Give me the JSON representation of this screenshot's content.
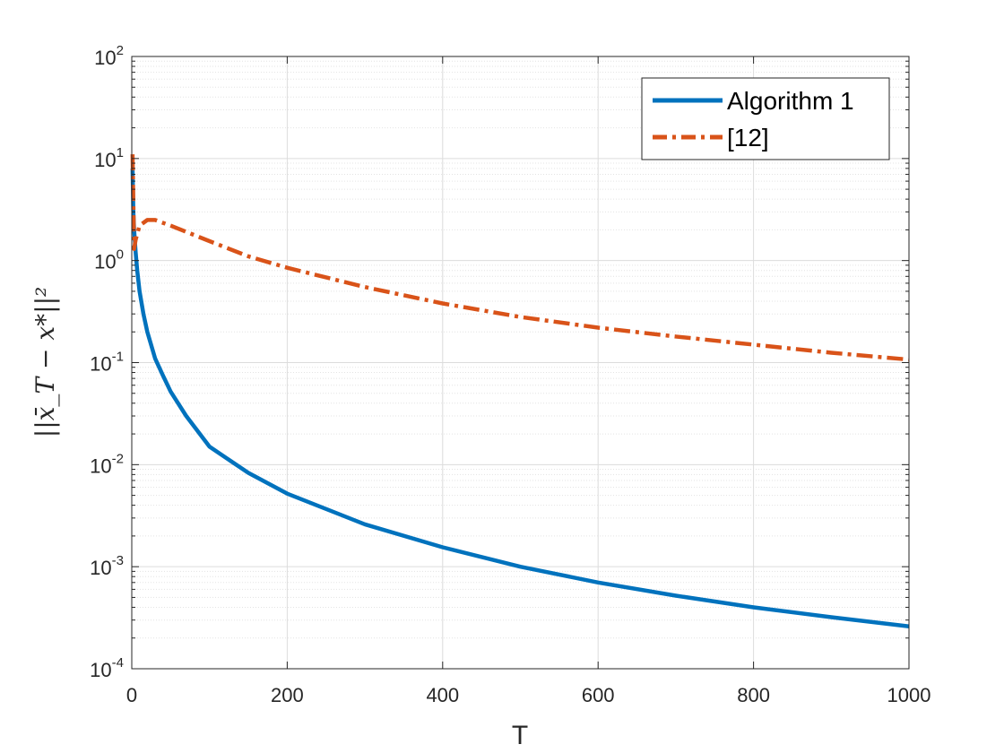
{
  "chart_data": {
    "type": "line",
    "title": "",
    "xlabel": "T",
    "ylabel": "||x̄_T − x*||²",
    "xlim": [
      0,
      1000
    ],
    "ylim": [
      0.0001,
      100
    ],
    "yscale": "log",
    "grid": true,
    "legend_position": "top-right",
    "x_ticks": [
      "0",
      "200",
      "400",
      "600",
      "800",
      "1000"
    ],
    "y_ticks": [
      {
        "base": "10",
        "exp": "-4"
      },
      {
        "base": "10",
        "exp": "-3"
      },
      {
        "base": "10",
        "exp": "-2"
      },
      {
        "base": "10",
        "exp": "-1"
      },
      {
        "base": "10",
        "exp": "0"
      },
      {
        "base": "10",
        "exp": "1"
      },
      {
        "base": "10",
        "exp": "2"
      }
    ],
    "series": [
      {
        "name": "Algorithm 1",
        "color": "#0072BD",
        "style": "solid",
        "x": [
          1,
          2,
          3,
          5,
          7,
          10,
          15,
          20,
          30,
          40,
          50,
          70,
          100,
          150,
          200,
          300,
          400,
          500,
          600,
          700,
          800,
          900,
          1000
        ],
        "y": [
          8,
          3,
          2,
          1.2,
          0.8,
          0.5,
          0.3,
          0.2,
          0.11,
          0.075,
          0.052,
          0.03,
          0.015,
          0.0083,
          0.0052,
          0.0026,
          0.00155,
          0.001,
          0.0007,
          0.00052,
          0.0004,
          0.00032,
          0.00026
        ]
      },
      {
        "name": "[12]",
        "color": "#D95319",
        "style": "dash-dot",
        "x": [
          1,
          3,
          5,
          10,
          20,
          30,
          50,
          100,
          150,
          200,
          300,
          400,
          500,
          600,
          700,
          800,
          900,
          1000
        ],
        "y": [
          11,
          1.3,
          1.6,
          2.2,
          2.5,
          2.5,
          2.2,
          1.55,
          1.1,
          0.85,
          0.55,
          0.38,
          0.28,
          0.22,
          0.18,
          0.15,
          0.125,
          0.107
        ]
      }
    ]
  }
}
